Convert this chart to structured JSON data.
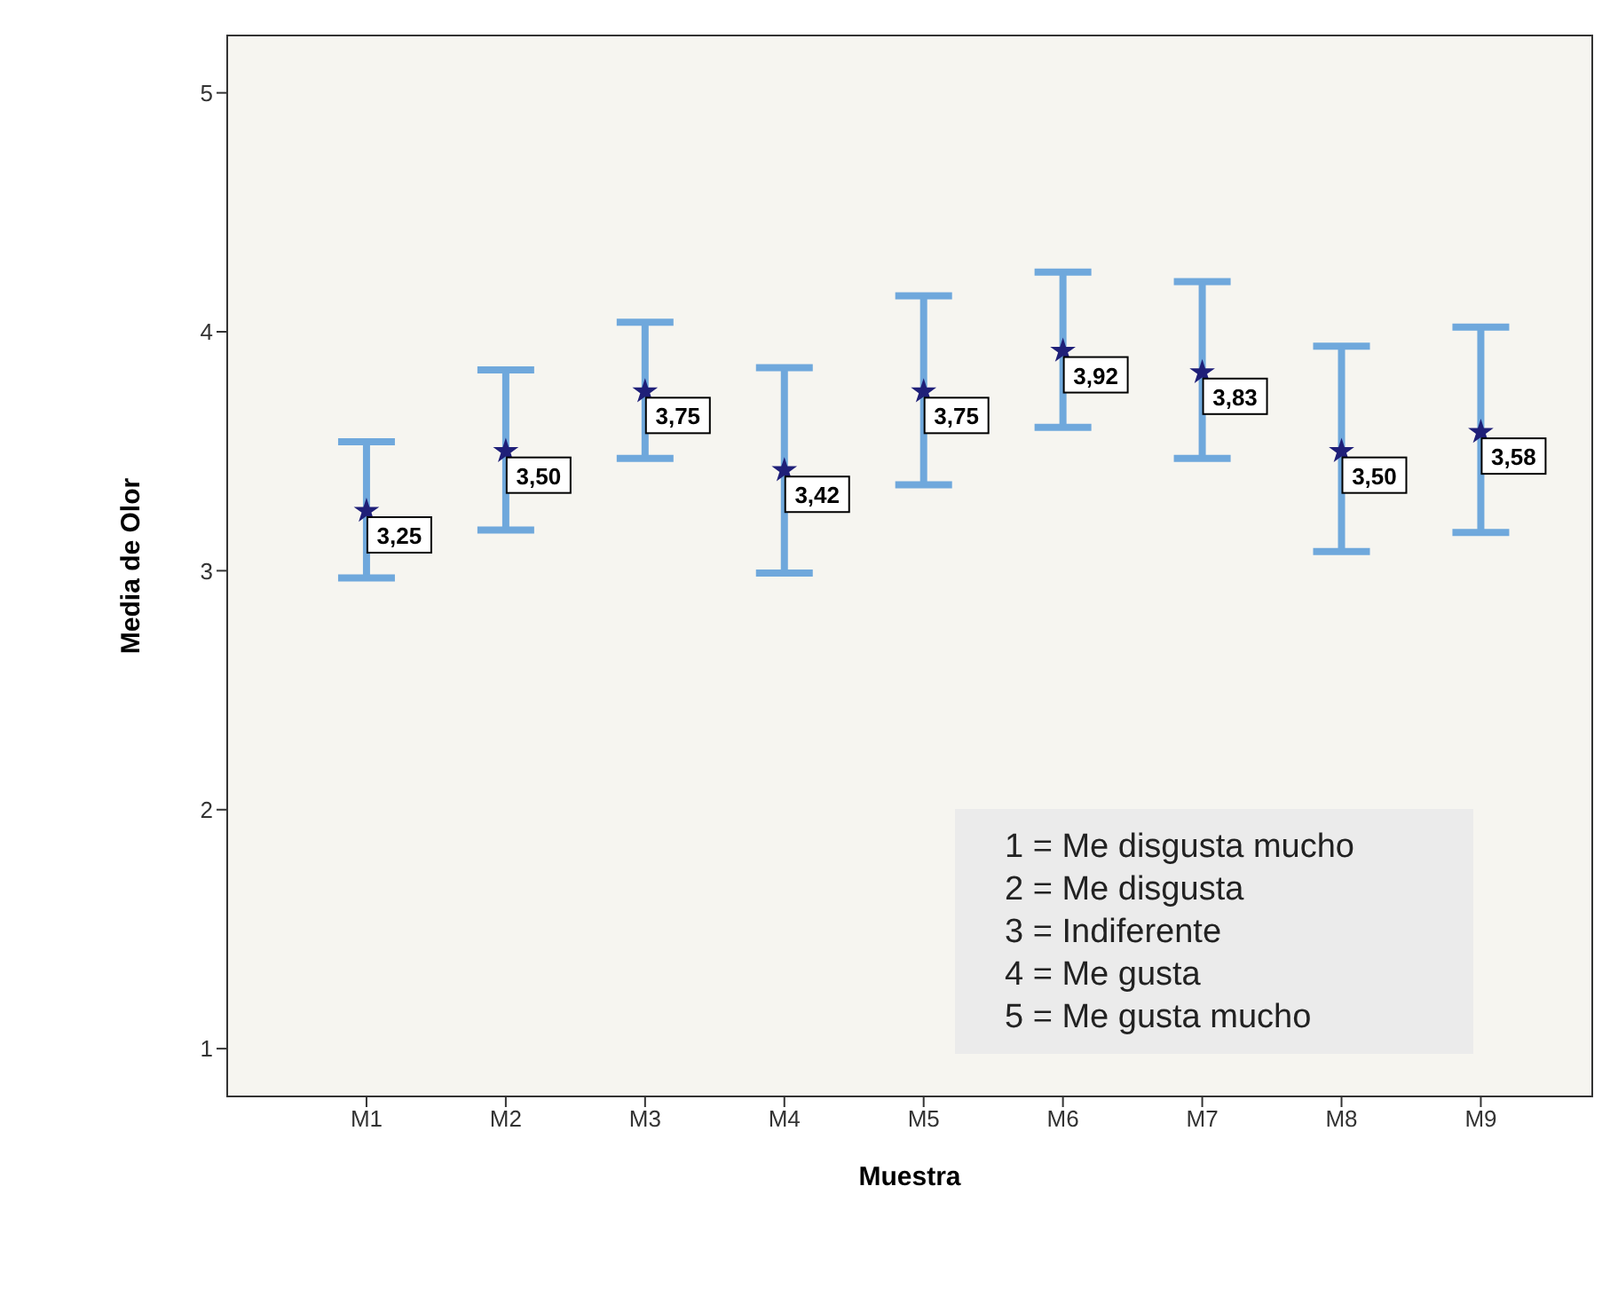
{
  "chart_data": {
    "type": "scatter",
    "xlabel": "Muestra",
    "ylabel": "Media de Olor",
    "categories": [
      "M1",
      "M2",
      "M3",
      "M4",
      "M5",
      "M6",
      "M7",
      "M8",
      "M9"
    ],
    "series": [
      {
        "color": "#1f1f78",
        "values": [
          3.25,
          3.5,
          3.75,
          3.42,
          3.75,
          3.92,
          3.83,
          3.5,
          3.58
        ],
        "errors": [
          [
            2.97,
            3.54
          ],
          [
            3.17,
            3.84
          ],
          [
            3.47,
            4.04
          ],
          [
            2.99,
            3.85
          ],
          [
            3.36,
            4.15
          ],
          [
            3.6,
            4.25
          ],
          [
            3.47,
            4.21
          ],
          [
            3.08,
            3.94
          ],
          [
            3.16,
            4.02
          ]
        ],
        "value_labels": [
          "3,25",
          "3,50",
          "3,75",
          "3,42",
          "3,75",
          "3,92",
          "3,83",
          "3,50",
          "3,58"
        ]
      }
    ],
    "marker": "star",
    "ylim": [
      0.8,
      5.24
    ],
    "yticks": [
      1,
      2,
      3,
      4,
      5
    ],
    "annotations": [
      "1 = Me disgusta mucho",
      "2 = Me disgusta",
      "3 = Indiferente",
      "4 = Me gusta",
      "5 = Me gusta mucho"
    ]
  }
}
